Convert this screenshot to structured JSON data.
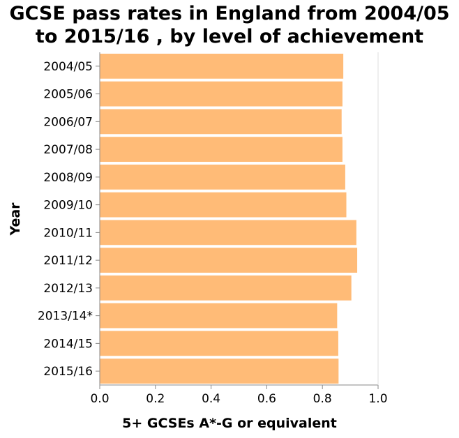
{
  "chart_data": {
    "type": "bar",
    "orientation": "horizontal",
    "title": [
      "GCSE pass rates in England from 2004/05",
      "to 2015/16 , by level of achievement"
    ],
    "xlabel": "5+ GCSEs A*-G or equivalent",
    "ylabel": "Year",
    "categories": [
      "2004/05",
      "2005/06",
      "2006/07",
      "2007/08",
      "2008/09",
      "2009/10",
      "2010/11",
      "2011/12",
      "2012/13",
      "2013/14*",
      "2014/15",
      "2015/16"
    ],
    "values": [
      0.875,
      0.872,
      0.869,
      0.872,
      0.882,
      0.886,
      0.922,
      0.925,
      0.904,
      0.853,
      0.857,
      0.858
    ],
    "xlim": [
      0,
      1.0
    ],
    "xticks": [
      "0.0",
      "0.2",
      "0.4",
      "0.6",
      "0.8",
      "1.0"
    ],
    "bar_color": "#ffbb77",
    "grid": false
  }
}
